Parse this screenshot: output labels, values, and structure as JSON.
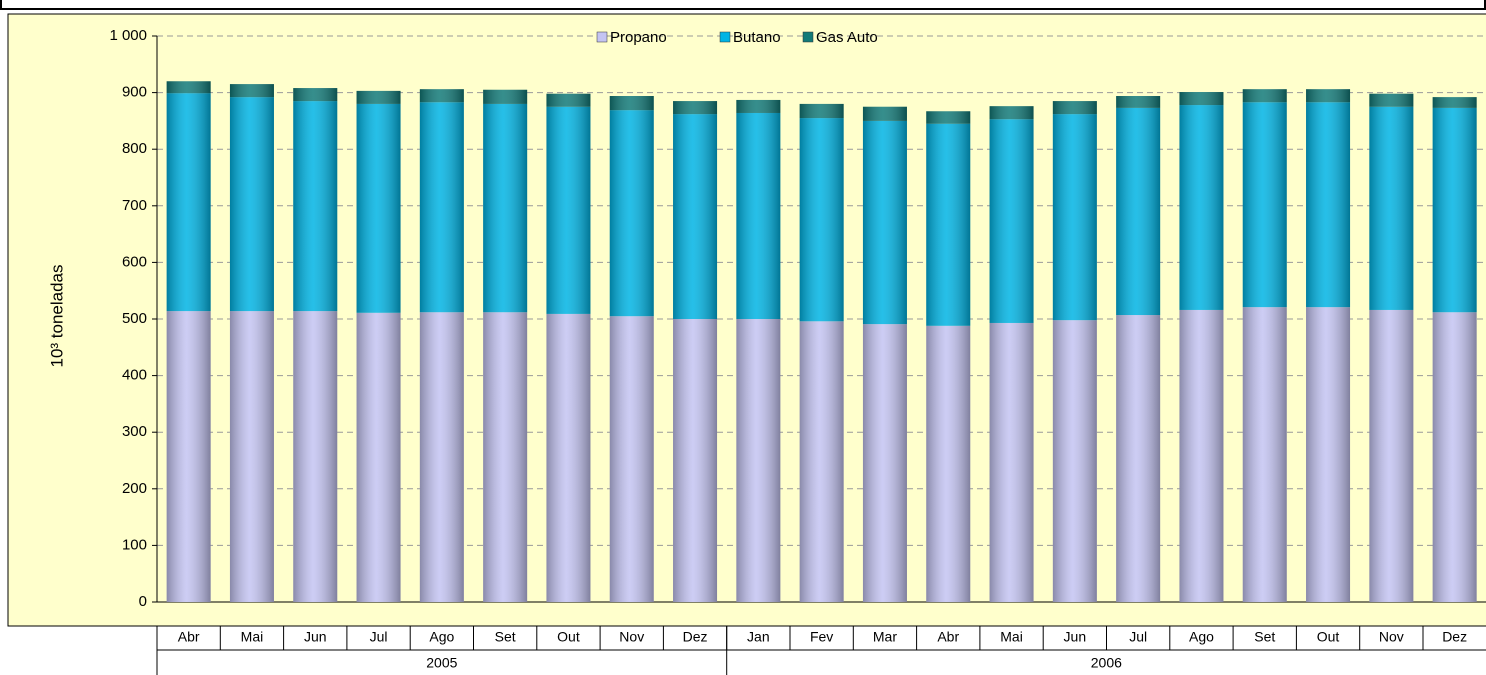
{
  "chart_data": {
    "type": "stacked-bar",
    "ylabel": "10³ toneladas",
    "categories": [
      "Abr",
      "Mai",
      "Jun",
      "Jul",
      "Ago",
      "Set",
      "Out",
      "Nov",
      "Dez",
      "Jan",
      "Fev",
      "Mar",
      "Abr",
      "Mai",
      "Jun",
      "Jul",
      "Ago",
      "Set",
      "Out",
      "Nov",
      "Dez"
    ],
    "groups": [
      {
        "label": "2005",
        "count": 9
      },
      {
        "label": "2006",
        "count": 12
      }
    ],
    "series": [
      {
        "name": "Propano",
        "color": "#c4c4f2",
        "values": [
          514,
          514,
          514,
          511,
          512,
          512,
          509,
          505,
          500,
          500,
          496,
          491,
          488,
          493,
          498,
          507,
          516,
          521,
          521,
          516,
          512
        ]
      },
      {
        "name": "Butano",
        "color": "#00b4e4",
        "values": [
          385,
          378,
          371,
          369,
          371,
          368,
          366,
          364,
          362,
          364,
          359,
          359,
          357,
          360,
          364,
          366,
          362,
          362,
          362,
          359,
          361
        ]
      },
      {
        "name": "Gas Auto",
        "color": "#127a78",
        "values": [
          21,
          23,
          23,
          23,
          23,
          25,
          23,
          25,
          23,
          23,
          25,
          25,
          22,
          23,
          23,
          21,
          23,
          23,
          23,
          23,
          19
        ]
      }
    ],
    "ylim": [
      0,
      1000
    ],
    "yticks": [
      0,
      100,
      200,
      300,
      400,
      500,
      600,
      700,
      800,
      900,
      {
        "value": 1000,
        "label": "1 000"
      }
    ],
    "grid": true,
    "legend": "top"
  }
}
